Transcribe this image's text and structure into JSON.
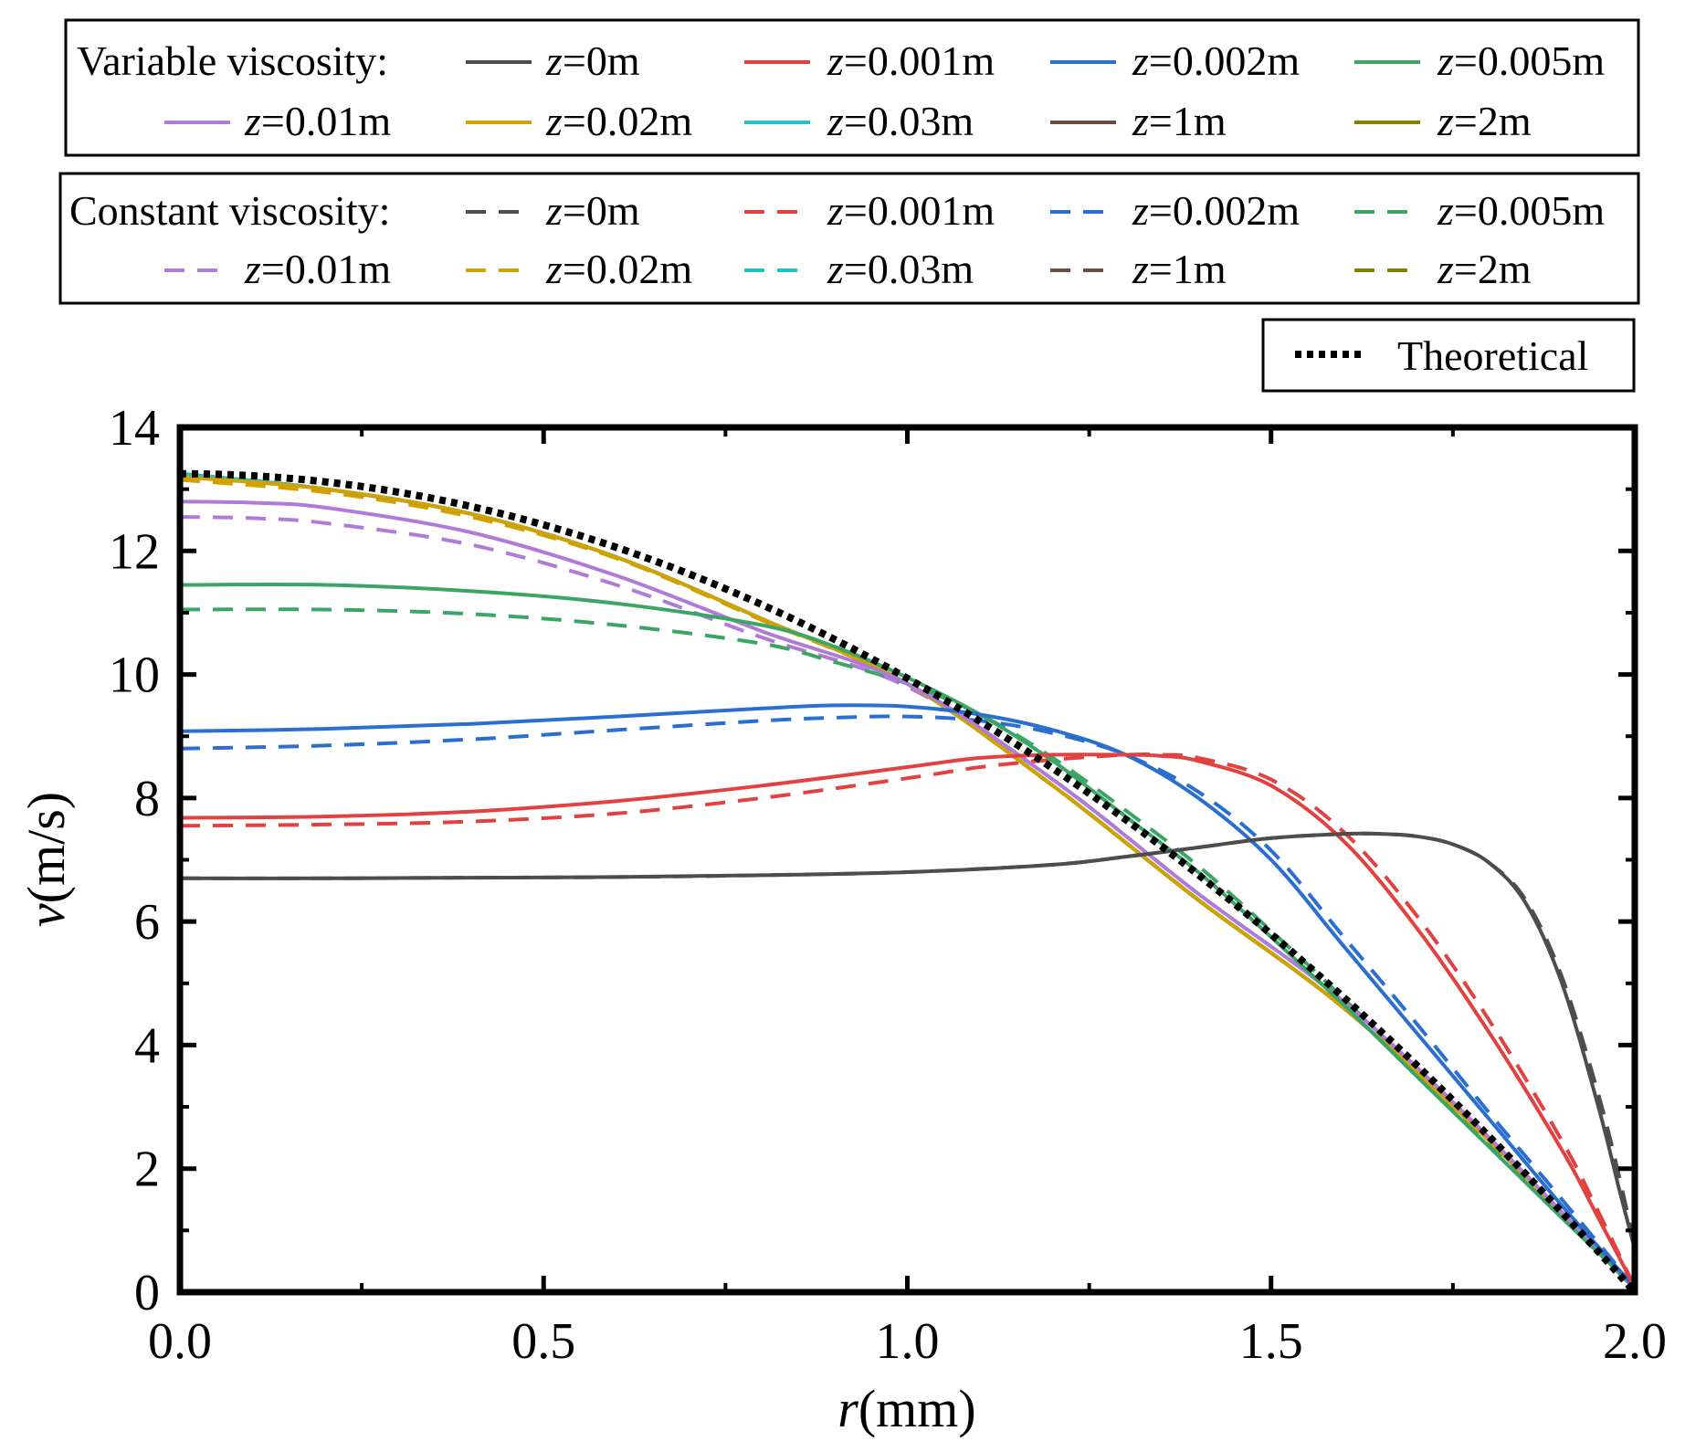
{
  "chart_data": {
    "type": "line",
    "title": "",
    "xlabel_var": "r",
    "xlabel_unit": "(mm)",
    "ylabel_var": "v",
    "ylabel_unit": "(m/s)",
    "xlim": [
      0,
      2
    ],
    "ylim": [
      0,
      14
    ],
    "xticks": [
      0,
      0.5,
      1,
      1.5,
      2
    ],
    "xtick_labels": [
      "0.0",
      "0.5",
      "1.0",
      "1.5",
      "2.0"
    ],
    "yticks": [
      0,
      2,
      4,
      6,
      8,
      10,
      12,
      14
    ],
    "ytick_labels": [
      "0",
      "2",
      "4",
      "6",
      "8",
      "10",
      "12",
      "14"
    ],
    "legend_variable_title": "Variable viscosity:",
    "legend_constant_title": "Constant viscosity:",
    "legend_theoretical_label": "Theoretical",
    "series": [
      {
        "id": "var-z0",
        "group": "variable",
        "z": "0",
        "name": "z=0m",
        "color": "#4d4d4d",
        "dash": "solid",
        "x": [
          0,
          0.2,
          0.4,
          0.6,
          0.8,
          1.0,
          1.2,
          1.3,
          1.4,
          1.5,
          1.6,
          1.65,
          1.7,
          1.75,
          1.8,
          1.85,
          1.9,
          1.95,
          1.98,
          2.0
        ],
        "y": [
          6.7,
          6.7,
          6.71,
          6.72,
          6.75,
          6.8,
          6.92,
          7.05,
          7.2,
          7.35,
          7.42,
          7.42,
          7.38,
          7.25,
          6.95,
          6.3,
          5.0,
          3.0,
          1.6,
          0.7
        ]
      },
      {
        "id": "var-z0001",
        "group": "variable",
        "z": "0.001",
        "name": "z=0.001m",
        "color": "#e34040",
        "dash": "solid",
        "x": [
          0,
          0.2,
          0.4,
          0.6,
          0.8,
          1.0,
          1.1,
          1.2,
          1.3,
          1.35,
          1.4,
          1.5,
          1.6,
          1.7,
          1.8,
          1.9,
          1.95,
          2.0
        ],
        "y": [
          7.68,
          7.7,
          7.78,
          7.95,
          8.2,
          8.5,
          8.65,
          8.7,
          8.7,
          8.68,
          8.6,
          8.2,
          7.3,
          5.9,
          4.2,
          2.3,
          1.2,
          0.08
        ]
      },
      {
        "id": "var-z0002",
        "group": "variable",
        "z": "0.002",
        "name": "z=0.002m",
        "color": "#2a6fd0",
        "dash": "solid",
        "x": [
          0,
          0.2,
          0.4,
          0.6,
          0.8,
          0.9,
          1.0,
          1.1,
          1.2,
          1.3,
          1.4,
          1.5,
          1.6,
          1.7,
          1.8,
          1.9,
          2.0
        ],
        "y": [
          9.08,
          9.12,
          9.2,
          9.32,
          9.45,
          9.5,
          9.48,
          9.35,
          9.1,
          8.7,
          8.0,
          7.0,
          5.6,
          4.2,
          2.8,
          1.4,
          0.08
        ]
      },
      {
        "id": "var-z0005",
        "group": "variable",
        "z": "0.005",
        "name": "z=0.005m",
        "color": "#3aa565",
        "dash": "solid",
        "x": [
          0,
          0.2,
          0.4,
          0.6,
          0.8,
          0.9,
          1.0,
          1.1,
          1.2,
          1.3,
          1.4,
          1.5,
          1.6,
          1.7,
          1.8,
          1.9,
          2.0
        ],
        "y": [
          11.45,
          11.45,
          11.35,
          11.15,
          10.8,
          10.45,
          9.95,
          9.35,
          8.6,
          7.7,
          6.8,
          5.75,
          4.65,
          3.5,
          2.35,
          1.2,
          0.08
        ]
      },
      {
        "id": "var-z001",
        "group": "variable",
        "z": "0.01",
        "name": "z=0.01m",
        "color": "#b07ad8",
        "dash": "solid",
        "x": [
          0,
          0.1,
          0.2,
          0.4,
          0.6,
          0.8,
          1.0,
          1.2,
          1.4,
          1.6,
          1.8,
          2.0
        ],
        "y": [
          12.8,
          12.78,
          12.7,
          12.3,
          11.6,
          10.7,
          9.85,
          8.3,
          6.45,
          4.7,
          2.5,
          0.05
        ]
      },
      {
        "id": "var-z002",
        "group": "variable",
        "z": "0.02",
        "name": "z=0.02m",
        "color": "#d4a200",
        "dash": "solid",
        "x": [
          0,
          0.2,
          0.4,
          0.6,
          0.8,
          1.0,
          1.2,
          1.4,
          1.6,
          1.8,
          2.0
        ],
        "y": [
          13.2,
          13.0,
          12.6,
          11.9,
          10.9,
          9.85,
          8.2,
          6.35,
          4.6,
          2.45,
          0.05
        ]
      },
      {
        "id": "var-z003",
        "group": "variable",
        "z": "0.03",
        "name": "z=0.03m",
        "color": "#20c4c4",
        "dash": "solid",
        "x": [
          0,
          0.2,
          0.4,
          0.6,
          0.8,
          1.0,
          1.2,
          1.4,
          1.6,
          1.8,
          2.0
        ],
        "y": [
          13.25,
          13.0,
          12.6,
          11.9,
          10.9,
          9.85,
          8.2,
          6.35,
          4.6,
          2.45,
          0.05
        ]
      },
      {
        "id": "var-z1",
        "group": "variable",
        "z": "1",
        "name": "z=1m",
        "color": "#6e4b42",
        "dash": "solid",
        "x": [
          0,
          0.2,
          0.4,
          0.6,
          0.8,
          1.0,
          1.2,
          1.4,
          1.6,
          1.8,
          2.0
        ],
        "y": [
          13.25,
          13.0,
          12.6,
          11.9,
          10.9,
          9.85,
          8.2,
          6.35,
          4.6,
          2.45,
          0.05
        ]
      },
      {
        "id": "var-z2",
        "group": "variable",
        "z": "2",
        "name": "z=2m",
        "color": "#8b7d00",
        "dash": "solid",
        "x": [
          0,
          0.2,
          0.4,
          0.6,
          0.8,
          1.0,
          1.2,
          1.4,
          1.6,
          1.8,
          2.0
        ],
        "y": [
          13.25,
          13.0,
          12.6,
          11.9,
          10.9,
          9.85,
          8.2,
          6.35,
          4.6,
          2.45,
          0.05
        ]
      },
      {
        "id": "con-z0",
        "group": "constant",
        "z": "0",
        "name": "z=0m",
        "color": "#4d4d4d",
        "dash": "dashed",
        "x": [
          0,
          0.2,
          0.4,
          0.6,
          0.8,
          1.0,
          1.2,
          1.3,
          1.4,
          1.5,
          1.6,
          1.65,
          1.7,
          1.75,
          1.8,
          1.85,
          1.9,
          1.95,
          1.98,
          2.0
        ],
        "y": [
          6.7,
          6.7,
          6.71,
          6.72,
          6.75,
          6.8,
          6.92,
          7.05,
          7.2,
          7.35,
          7.42,
          7.42,
          7.38,
          7.25,
          6.95,
          6.35,
          5.1,
          3.2,
          1.8,
          0.7
        ]
      },
      {
        "id": "con-z0001",
        "group": "constant",
        "z": "0.001",
        "name": "z=0.001m",
        "color": "#e34040",
        "dash": "dashed",
        "x": [
          0,
          0.2,
          0.4,
          0.6,
          0.8,
          1.0,
          1.1,
          1.2,
          1.3,
          1.35,
          1.4,
          1.5,
          1.6,
          1.7,
          1.8,
          1.9,
          1.95,
          2.0
        ],
        "y": [
          7.55,
          7.57,
          7.62,
          7.75,
          8.0,
          8.32,
          8.5,
          8.62,
          8.7,
          8.7,
          8.65,
          8.3,
          7.45,
          6.1,
          4.4,
          2.45,
          1.3,
          0.08
        ]
      },
      {
        "id": "con-z0002",
        "group": "constant",
        "z": "0.002",
        "name": "z=0.002m",
        "color": "#2a6fd0",
        "dash": "dashed",
        "x": [
          0,
          0.2,
          0.4,
          0.6,
          0.8,
          0.9,
          1.0,
          1.1,
          1.2,
          1.3,
          1.4,
          1.5,
          1.6,
          1.7,
          1.8,
          1.9,
          2.0
        ],
        "y": [
          8.8,
          8.85,
          8.95,
          9.1,
          9.25,
          9.3,
          9.32,
          9.25,
          9.05,
          8.7,
          8.1,
          7.15,
          5.75,
          4.35,
          2.9,
          1.5,
          0.08
        ]
      },
      {
        "id": "con-z0005",
        "group": "constant",
        "z": "0.005",
        "name": "z=0.005m",
        "color": "#3aa565",
        "dash": "dashed",
        "x": [
          0,
          0.2,
          0.4,
          0.6,
          0.8,
          0.9,
          1.0,
          1.1,
          1.2,
          1.3,
          1.4,
          1.5,
          1.6,
          1.7,
          1.8,
          1.9,
          2.0
        ],
        "y": [
          11.05,
          11.05,
          10.98,
          10.8,
          10.5,
          10.2,
          9.85,
          9.35,
          8.65,
          7.8,
          6.9,
          5.85,
          4.75,
          3.6,
          2.4,
          1.25,
          0.08
        ]
      },
      {
        "id": "con-z001",
        "group": "constant",
        "z": "0.01",
        "name": "z=0.01m",
        "color": "#b07ad8",
        "dash": "dashed",
        "x": [
          0,
          0.1,
          0.2,
          0.4,
          0.6,
          0.8,
          1.0,
          1.2,
          1.4,
          1.6,
          1.8,
          2.0
        ],
        "y": [
          12.55,
          12.53,
          12.45,
          12.1,
          11.45,
          10.6,
          9.8,
          8.3,
          6.45,
          4.7,
          2.5,
          0.05
        ]
      },
      {
        "id": "con-z002",
        "group": "constant",
        "z": "0.02",
        "name": "z=0.02m",
        "color": "#d4a200",
        "dash": "dashed",
        "x": [
          0,
          0.2,
          0.4,
          0.6,
          0.8,
          1.0,
          1.2,
          1.4,
          1.6,
          1.8,
          2.0
        ],
        "y": [
          13.15,
          12.95,
          12.55,
          11.88,
          10.88,
          9.85,
          8.2,
          6.35,
          4.6,
          2.45,
          0.05
        ]
      },
      {
        "id": "con-z003",
        "group": "constant",
        "z": "0.03",
        "name": "z=0.03m",
        "color": "#20c4c4",
        "dash": "dashed",
        "x": [
          0,
          0.2,
          0.4,
          0.6,
          0.8,
          1.0,
          1.2,
          1.4,
          1.6,
          1.8,
          2.0
        ],
        "y": [
          13.25,
          13.0,
          12.6,
          11.9,
          10.9,
          9.85,
          8.2,
          6.35,
          4.6,
          2.45,
          0.05
        ]
      },
      {
        "id": "con-z1",
        "group": "constant",
        "z": "1",
        "name": "z=1m",
        "color": "#6e4b42",
        "dash": "dashed",
        "x": [
          0,
          0.2,
          0.4,
          0.6,
          0.8,
          1.0,
          1.2,
          1.4,
          1.6,
          1.8,
          2.0
        ],
        "y": [
          13.25,
          13.0,
          12.6,
          11.9,
          10.9,
          9.85,
          8.2,
          6.35,
          4.6,
          2.45,
          0.05
        ]
      },
      {
        "id": "con-z2",
        "group": "constant",
        "z": "2",
        "name": "z=2m",
        "color": "#8b7d00",
        "dash": "dashed",
        "x": [
          0,
          0.2,
          0.4,
          0.6,
          0.8,
          1.0,
          1.2,
          1.4,
          1.6,
          1.8,
          2.0
        ],
        "y": [
          13.25,
          13.0,
          12.6,
          11.9,
          10.9,
          9.85,
          8.2,
          6.35,
          4.6,
          2.45,
          0.05
        ]
      }
    ],
    "theoretical": {
      "name": "Theoretical",
      "color": "#000000",
      "dash": "dotted",
      "formula": "v = 13.25 * (1 - (r/2)^2)",
      "vmax": 13.25,
      "R": 2.0
    }
  }
}
